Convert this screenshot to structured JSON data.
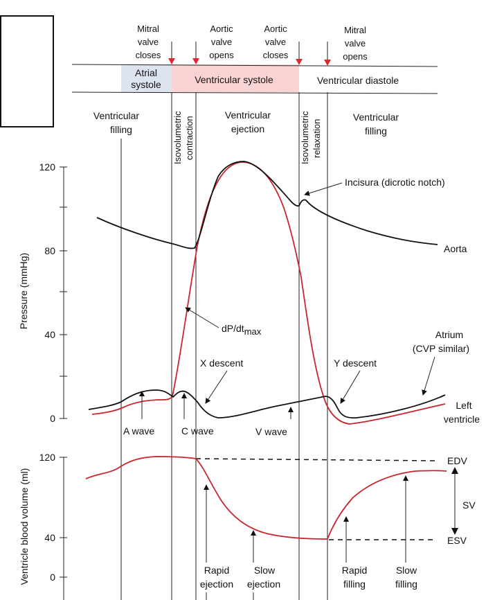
{
  "header": {
    "events": [
      "Mitral valve closes",
      "Aortic valve opens",
      "Aortic valve closes",
      "Mitral valve opens"
    ],
    "event_lines": [
      [
        "Mitral",
        "valve",
        "closes"
      ],
      [
        "Aortic",
        "valve",
        "opens"
      ],
      [
        "Aortic",
        "valve",
        "closes"
      ],
      [
        "Mitral",
        "valve",
        "opens"
      ]
    ],
    "atrial_systole": [
      "Atrial",
      "systole"
    ],
    "ventricular_systole": "Ventricular systole",
    "ventricular_diastole": "Ventricular diastole",
    "colors": {
      "atrial_systole": "#dde3ef",
      "ventricular_systole": "#fbd3d5",
      "event_arrow": "#e0262f"
    }
  },
  "phases": {
    "filling_1": [
      "Ventricular",
      "filling"
    ],
    "isovolumetric_contraction": [
      "Isovolumetric",
      "contraction"
    ],
    "ejection": [
      "Ventricular",
      "ejection"
    ],
    "isovolumetric_relaxation": [
      "Isovolumetric",
      "relaxation"
    ],
    "filling_2": [
      "Ventricular",
      "filling"
    ]
  },
  "pressure_panel": {
    "ylabel": "Pressure (mmHg)",
    "ticks": [
      "0",
      "40",
      "80",
      "120"
    ],
    "labels": {
      "incisura": "Incisura (dicrotic notch)",
      "aorta": "Aorta",
      "dpdt": "dP/dt",
      "dpdt_sub": "max",
      "atrium": [
        "Atrium",
        "(CVP similar)"
      ],
      "left_ventricle": [
        "Left",
        "ventricle"
      ],
      "x_descent": "X descent",
      "y_descent": "Y descent",
      "a_wave": "A wave",
      "c_wave": "C wave",
      "v_wave": "V wave"
    },
    "colors": {
      "aorta": "#111111",
      "left_ventricle": "#c8252c",
      "atrium": "#111111"
    }
  },
  "volume_panel": {
    "ylabel": "Ventricle blood volume (ml)",
    "ticks": [
      "0",
      "40",
      "120"
    ],
    "labels": {
      "edv": "EDV",
      "esv": "ESV",
      "sv": "SV",
      "rapid_ejection": [
        "Rapid",
        "ejection"
      ],
      "slow_ejection": [
        "Slow",
        "ejection"
      ],
      "rapid_filling": [
        "Rapid",
        "filling"
      ],
      "slow_filling": [
        "Slow",
        "filling"
      ]
    },
    "colors": {
      "volume": "#c8252c"
    }
  }
}
